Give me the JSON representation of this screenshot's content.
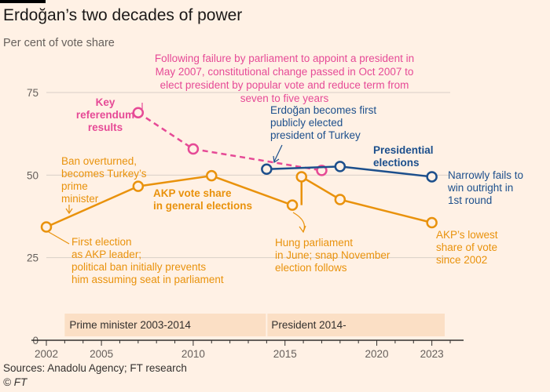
{
  "title": "Erdoğan’s two decades of power",
  "subtitle": "Per cent of vote share",
  "footer": {
    "sources": "Sources: Anadolu Agency; FT research",
    "copyright": "© FT"
  },
  "colors": {
    "background": "#fff1e5",
    "akp": "#e9920c",
    "referendum": "#e64a96",
    "presidential": "#1c4f8c",
    "period_band": "#fbdfc5",
    "grid": "#d8cfc7",
    "axis": "#33302e"
  },
  "chart_data": {
    "type": "line",
    "xlim": [
      2002,
      2024
    ],
    "ylim": [
      0,
      75
    ],
    "x_ticks": [
      2002,
      2005,
      2010,
      2015,
      2020,
      2023
    ],
    "y_ticks": [
      0,
      25,
      50,
      75
    ],
    "series": [
      {
        "key": "akp",
        "name": "AKP vote share in general elections",
        "color": "#e9920c",
        "points": [
          [
            2002,
            34.3
          ],
          [
            2007,
            46.6
          ],
          [
            2011,
            49.8
          ],
          [
            2015.4,
            40.9
          ],
          [
            2015.9,
            49.5
          ],
          [
            2018,
            42.6
          ],
          [
            2023,
            35.6
          ]
        ]
      },
      {
        "key": "referendum",
        "name": "Key referendum results",
        "color": "#e64a96",
        "dashed": true,
        "points": [
          [
            2007,
            68.9
          ],
          [
            2010,
            57.9
          ],
          [
            2017,
            51.4
          ]
        ]
      },
      {
        "key": "presidential",
        "name": "Presidential elections",
        "color": "#1c4f8c",
        "points": [
          [
            2014,
            51.8
          ],
          [
            2018,
            52.6
          ],
          [
            2023,
            49.5
          ]
        ]
      }
    ],
    "periods": [
      {
        "label": "Prime minister 2003-2014",
        "start": 2003,
        "end": 2014
      },
      {
        "label": "President 2014-",
        "start": 2014,
        "end": 2023.7
      }
    ],
    "annotations": {
      "referendum_note": [
        "Following failure by parliament to appoint a president in",
        "May 2007, constitutional change passed in Oct 2007 to",
        "elect president by popular vote and reduce term from",
        "seven to five years"
      ],
      "referendum_label": [
        "Key",
        "referendum",
        "results"
      ],
      "ban_overturned": [
        "Ban overturned,",
        "becomes Turkey’s",
        "prime",
        "minister"
      ],
      "akp_label": [
        "AKP vote share",
        "in general elections"
      ],
      "first_election": [
        "First election",
        "as AKP leader;",
        "political ban initially prevents",
        "him assuming seat in parliament"
      ],
      "hung_parliament": [
        "Hung parliament",
        "in June; snap November",
        "election follows"
      ],
      "first_president": [
        "Erdoğan becomes first",
        "publicly elected",
        "president of Turkey"
      ],
      "presidential_label": [
        "Presidential",
        "elections"
      ],
      "narrowly_fails": [
        "Narrowly fails to",
        "win outright in",
        "1st round"
      ],
      "akp_lowest": [
        "AKP’s lowest",
        "share of vote",
        "since 2002"
      ]
    }
  }
}
